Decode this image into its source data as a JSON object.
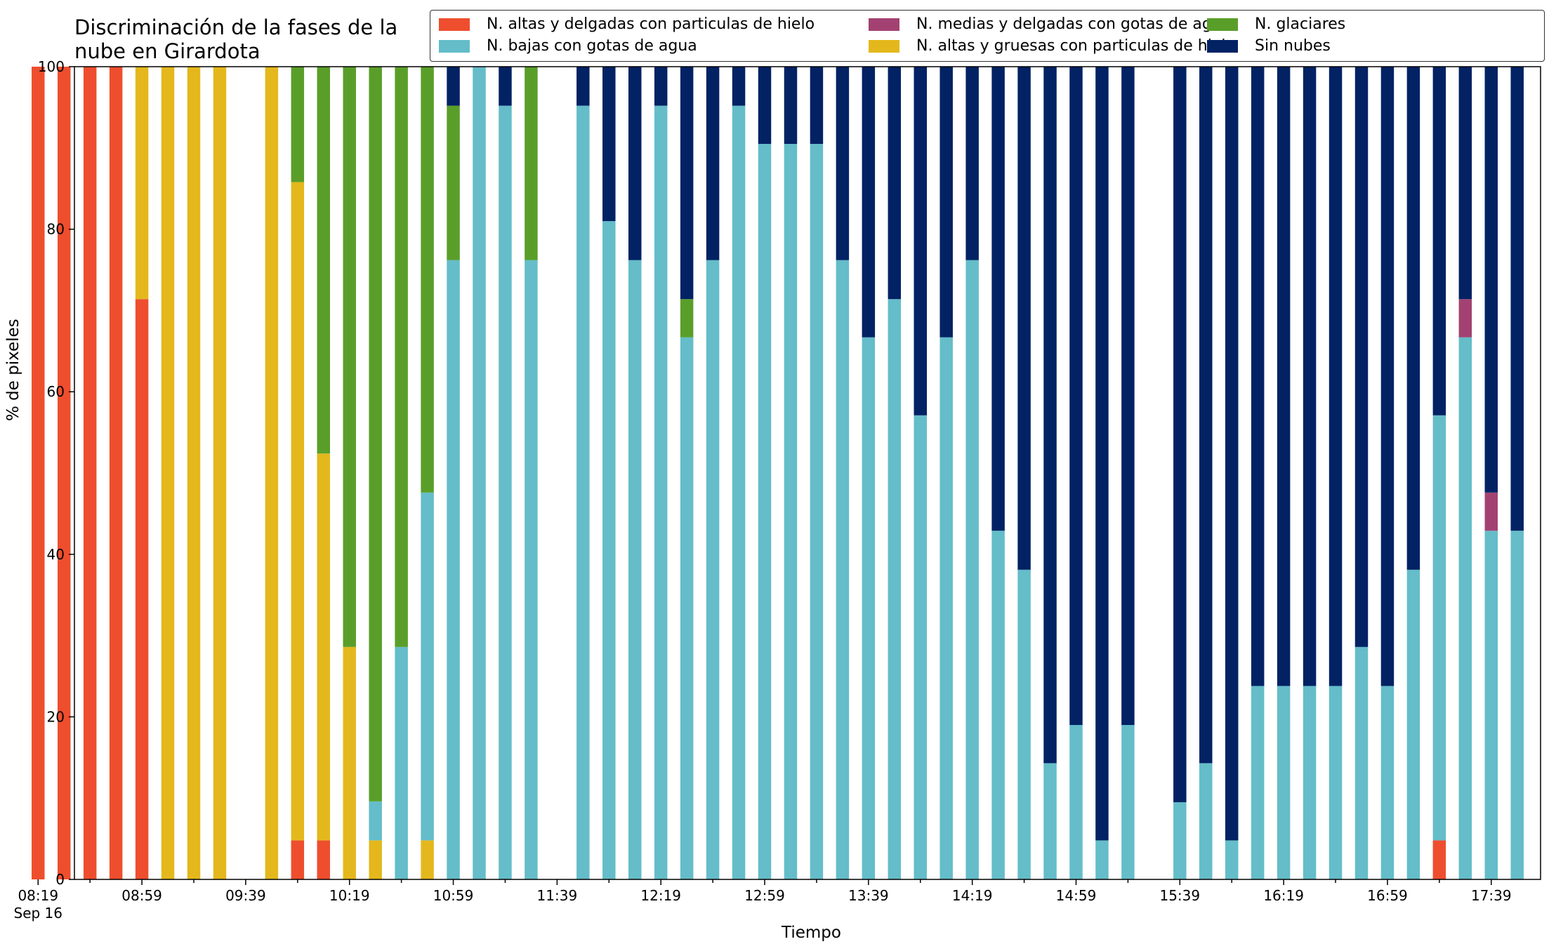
{
  "chart_data": {
    "type": "bar",
    "stacked": true,
    "title": "Discriminación de la fases de la nube en Girardota",
    "title_lines": [
      "Discriminación de la fases de la",
      "nube en Girardota"
    ],
    "xlabel": "Tiempo",
    "ylabel": "% de pixeles",
    "ylim": [
      0,
      100
    ],
    "yticks": [
      0,
      20,
      40,
      60,
      80,
      100
    ],
    "xlim_minutes": [
      513,
      1078
    ],
    "x_tick_labels": [
      "08:19",
      "08:59",
      "09:39",
      "10:19",
      "10:59",
      "11:39",
      "12:19",
      "12:59",
      "13:39",
      "14:19",
      "14:59",
      "15:39",
      "16:19",
      "16:59",
      "17:39"
    ],
    "x_tick_date": "Sep 16",
    "grid": false,
    "legend_position": "top",
    "series": [
      {
        "name": "N. altas y delgadas con particulas de hielo",
        "color": "#ee4e2e"
      },
      {
        "name": "N. altas y gruesas con particulas de hielo",
        "color": "#e4b81c"
      },
      {
        "name": "N. bajas con gotas de agua",
        "color": "#64bdc9"
      },
      {
        "name": "N. glaciares",
        "color": "#5a9e2a"
      },
      {
        "name": "N. medias y delgadas con gotas de agua",
        "color": "#a34272"
      },
      {
        "name": "Sin nubes",
        "color": "#022264"
      }
    ],
    "legend_order": [
      0,
      2,
      4,
      1,
      3,
      5
    ],
    "bar_width_minutes": 5,
    "times": [
      "08:19",
      "08:29",
      "08:39",
      "08:49",
      "08:59",
      "09:09",
      "09:19",
      "09:29",
      "09:49",
      "09:59",
      "10:09",
      "10:19",
      "10:29",
      "10:39",
      "10:49",
      "10:59",
      "11:09",
      "11:19",
      "11:29",
      "11:49",
      "11:59",
      "12:09",
      "12:19",
      "12:29",
      "12:39",
      "12:49",
      "12:59",
      "13:09",
      "13:19",
      "13:29",
      "13:39",
      "13:49",
      "13:59",
      "14:09",
      "14:19",
      "14:29",
      "14:39",
      "14:49",
      "14:59",
      "15:09",
      "15:19",
      "15:39",
      "15:49",
      "15:59",
      "16:09",
      "16:19",
      "16:29",
      "16:39",
      "16:49",
      "16:59",
      "17:09",
      "17:19",
      "17:29",
      "17:39",
      "17:49"
    ],
    "stacks": [
      [
        100,
        0,
        0,
        0,
        0,
        0
      ],
      [
        100,
        0,
        0,
        0,
        0,
        0
      ],
      [
        100,
        0,
        0,
        0,
        0,
        0
      ],
      [
        100,
        0,
        0,
        0,
        0,
        0
      ],
      [
        71.4,
        28.6,
        0,
        0,
        0,
        0
      ],
      [
        0,
        100,
        0,
        0,
        0,
        0
      ],
      [
        0,
        100,
        0,
        0,
        0,
        0
      ],
      [
        0,
        100,
        0,
        0,
        0,
        0
      ],
      [
        0,
        100,
        0,
        0,
        0,
        0
      ],
      [
        4.8,
        81,
        0,
        14.2,
        0,
        0
      ],
      [
        4.8,
        47.6,
        0,
        47.6,
        0,
        0
      ],
      [
        0,
        28.6,
        0,
        71.4,
        0,
        0
      ],
      [
        0,
        4.8,
        4.8,
        90.4,
        0,
        0
      ],
      [
        0,
        0,
        28.6,
        71.4,
        0,
        0
      ],
      [
        0,
        4.8,
        42.8,
        52.4,
        0,
        0
      ],
      [
        0,
        0,
        76.2,
        19,
        0,
        4.8
      ],
      [
        0,
        0,
        100,
        0,
        0,
        0
      ],
      [
        0,
        0,
        95.2,
        0,
        0,
        4.8
      ],
      [
        0,
        0,
        76.2,
        23.8,
        0,
        0
      ],
      [
        0,
        0,
        95.2,
        0,
        0,
        4.8
      ],
      [
        0,
        0,
        81,
        0,
        0,
        19
      ],
      [
        0,
        0,
        76.2,
        0,
        0,
        23.8
      ],
      [
        0,
        0,
        95.2,
        0,
        0,
        4.8
      ],
      [
        0,
        0,
        66.7,
        4.7,
        0,
        28.6
      ],
      [
        0,
        0,
        76.2,
        0,
        0,
        23.8
      ],
      [
        0,
        0,
        95.2,
        0,
        0,
        4.8
      ],
      [
        0,
        0,
        90.5,
        0,
        0,
        9.5
      ],
      [
        0,
        0,
        90.5,
        0,
        0,
        9.5
      ],
      [
        0,
        0,
        90.5,
        0,
        0,
        9.5
      ],
      [
        0,
        0,
        76.2,
        0,
        0,
        23.8
      ],
      [
        0,
        0,
        66.7,
        0,
        0,
        33.3
      ],
      [
        0,
        0,
        71.4,
        0,
        0,
        28.6
      ],
      [
        0,
        0,
        57.1,
        0,
        0,
        42.9
      ],
      [
        0,
        0,
        66.7,
        0,
        0,
        33.3
      ],
      [
        0,
        0,
        76.2,
        0,
        0,
        23.8
      ],
      [
        0,
        0,
        42.9,
        0,
        0,
        57.1
      ],
      [
        0,
        0,
        38.1,
        0,
        0,
        61.9
      ],
      [
        0,
        0,
        14.3,
        0,
        0,
        85.7
      ],
      [
        0,
        0,
        19,
        0,
        0,
        81
      ],
      [
        0,
        0,
        4.8,
        0,
        0,
        95.2
      ],
      [
        0,
        0,
        19,
        0,
        0,
        81
      ],
      [
        0,
        0,
        9.5,
        0,
        0,
        90.5
      ],
      [
        0,
        0,
        14.3,
        0,
        0,
        85.7
      ],
      [
        0,
        0,
        4.8,
        0,
        0,
        95.2
      ],
      [
        0,
        0,
        23.8,
        0,
        0,
        76.2
      ],
      [
        0,
        0,
        23.8,
        0,
        0,
        76.2
      ],
      [
        0,
        0,
        23.8,
        0,
        0,
        76.2
      ],
      [
        0,
        0,
        23.8,
        0,
        0,
        76.2
      ],
      [
        0,
        0,
        28.6,
        0,
        0,
        71.4
      ],
      [
        0,
        0,
        23.8,
        0,
        0,
        76.2
      ],
      [
        0,
        0,
        38.1,
        0,
        0,
        61.9
      ],
      [
        4.8,
        0,
        52.3,
        0,
        0,
        42.9
      ],
      [
        0,
        0,
        66.7,
        0,
        4.7,
        28.6
      ],
      [
        0,
        0,
        42.9,
        0,
        4.7,
        52.4
      ],
      [
        0,
        0,
        42.9,
        0,
        0,
        57.1
      ]
    ]
  }
}
